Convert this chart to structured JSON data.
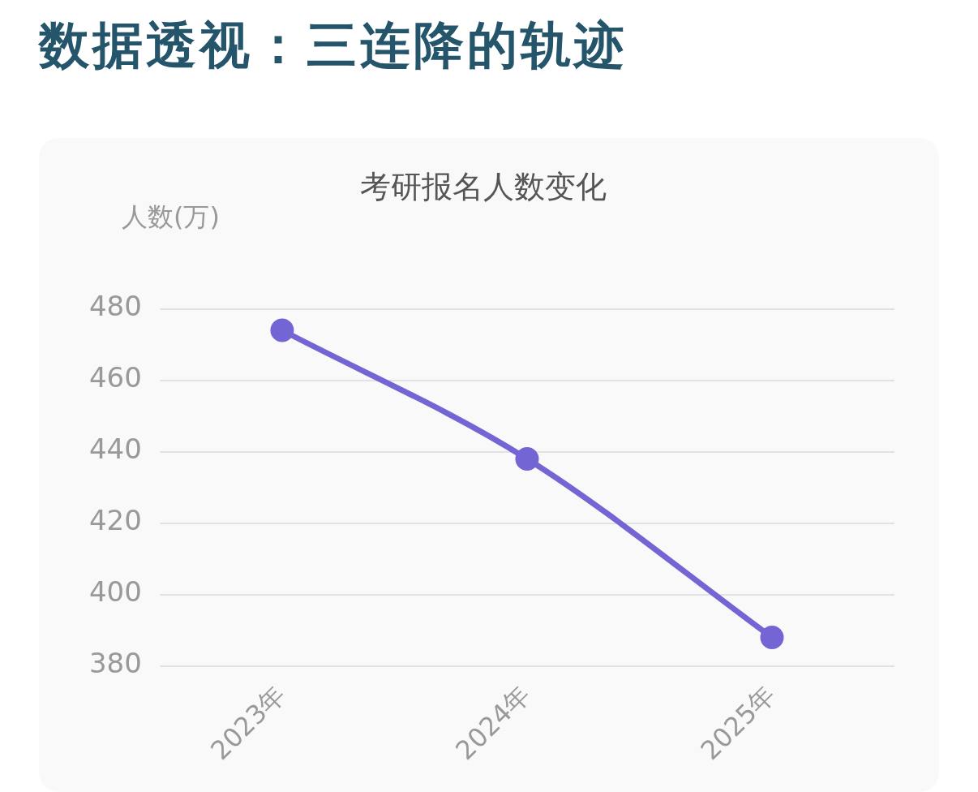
{
  "chart_data": {
    "type": "line",
    "title": "数据透视：三连降的轨迹",
    "subtitle": "考研报名人数变化",
    "ylabel": "人数(万)",
    "categories": [
      "2023年",
      "2024年",
      "2025年"
    ],
    "series": [
      {
        "color": "#7366d4",
        "values": [
          474,
          438,
          388
        ]
      }
    ],
    "ylim": [
      380,
      480
    ],
    "yticks": [
      380,
      400,
      420,
      440,
      460,
      480
    ],
    "grid": "y",
    "legend": false,
    "marker": "circle",
    "line_style": "solid"
  }
}
